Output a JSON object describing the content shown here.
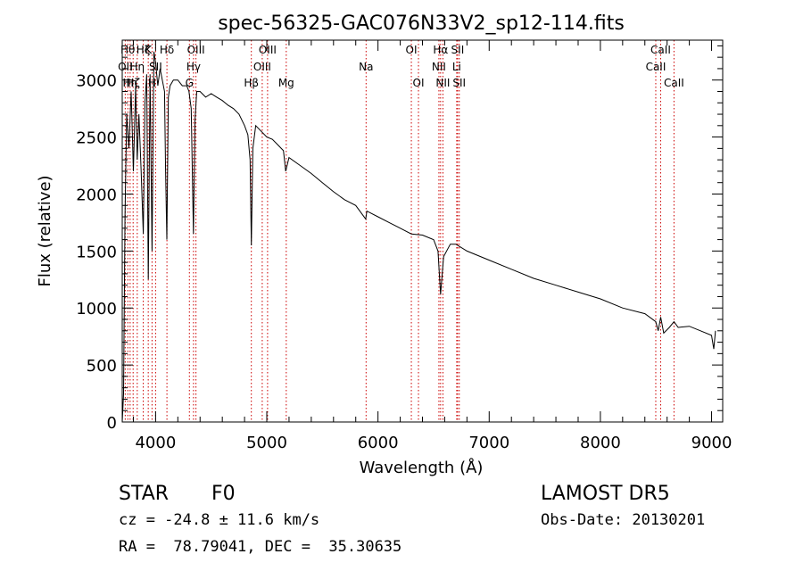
{
  "chart_data": {
    "type": "line",
    "title": "spec-56325-GAC076N33V2_sp12-114.fits",
    "xlabel": "Wavelength (Å)",
    "ylabel": "Flux (relative)",
    "xlim": [
      3700,
      9100
    ],
    "ylim": [
      0,
      3350
    ],
    "x_ticks": [
      4000,
      5000,
      6000,
      7000,
      8000,
      9000
    ],
    "y_ticks": [
      0,
      500,
      1000,
      1500,
      2000,
      2500,
      3000
    ],
    "grid": false,
    "line_color": "#000000",
    "marker_color": "#cc0000",
    "series": [
      {
        "x": [
          3700,
          3712,
          3725,
          3740,
          3760,
          3780,
          3800,
          3820,
          3835,
          3850,
          3870,
          3889,
          3905,
          3920,
          3934,
          3950,
          3968,
          3985,
          4000,
          4020,
          4040,
          4060,
          4080,
          4090,
          4101,
          4115,
          4130,
          4160,
          4200,
          4240,
          4280,
          4300,
          4320,
          4340,
          4355,
          4370,
          4400,
          4450,
          4500,
          4550,
          4600,
          4650,
          4700,
          4750,
          4800,
          4830,
          4850,
          4861,
          4875,
          4900,
          4950,
          5000,
          5050,
          5100,
          5150,
          5170,
          5200,
          5300,
          5400,
          5500,
          5600,
          5700,
          5800,
          5890,
          5900,
          6000,
          6100,
          6200,
          6300,
          6400,
          6500,
          6540,
          6563,
          6590,
          6650,
          6700,
          6800,
          7000,
          7200,
          7400,
          7600,
          7800,
          8000,
          8200,
          8400,
          8498,
          8520,
          8542,
          8570,
          8620,
          8662,
          8700,
          8800,
          8900,
          9000,
          9020,
          9035
        ],
        "y": [
          0,
          250,
          1800,
          2700,
          2400,
          2900,
          2200,
          2950,
          2300,
          2700,
          2200,
          1650,
          2800,
          3050,
          1250,
          3050,
          1500,
          3250,
          3150,
          2950,
          3100,
          3000,
          2900,
          2200,
          1600,
          2850,
          2950,
          3000,
          3000,
          2950,
          2950,
          2900,
          2750,
          1650,
          2650,
          2900,
          2900,
          2850,
          2880,
          2850,
          2820,
          2780,
          2750,
          2700,
          2600,
          2520,
          2300,
          1550,
          2400,
          2600,
          2550,
          2500,
          2480,
          2430,
          2380,
          2200,
          2320,
          2250,
          2180,
          2100,
          2020,
          1950,
          1900,
          1780,
          1850,
          1800,
          1750,
          1700,
          1650,
          1640,
          1600,
          1500,
          1120,
          1450,
          1560,
          1560,
          1500,
          1420,
          1340,
          1260,
          1200,
          1140,
          1080,
          1000,
          950,
          880,
          800,
          920,
          780,
          830,
          880,
          830,
          840,
          800,
          760,
          640,
          800
        ]
      }
    ],
    "line_markers": [
      {
        "x": 3727,
        "label": "OII",
        "row": 1
      },
      {
        "x": 3750,
        "label": "Hθ",
        "row": 0
      },
      {
        "x": 3771,
        "label": "Hη",
        "row": 2
      },
      {
        "x": 3798,
        "label": "Hζ",
        "row": 2
      },
      {
        "x": 3835,
        "label": "Hη",
        "row": 1
      },
      {
        "x": 3889,
        "label": "Hζ",
        "row": 0
      },
      {
        "x": 3934,
        "label": "K",
        "row": 0
      },
      {
        "x": 3968,
        "label": "H",
        "row": 2
      },
      {
        "x": 4000,
        "label": "SII",
        "row": 1
      },
      {
        "x": 4102,
        "label": "Hδ",
        "row": 0
      },
      {
        "x": 4304,
        "label": "G",
        "row": 2
      },
      {
        "x": 4341,
        "label": "Hγ",
        "row": 1
      },
      {
        "x": 4363,
        "label": "OIII",
        "row": 0
      },
      {
        "x": 4861,
        "label": "Hβ",
        "row": 2
      },
      {
        "x": 4959,
        "label": "OIII",
        "row": 1
      },
      {
        "x": 5007,
        "label": "OIII",
        "row": 0
      },
      {
        "x": 5175,
        "label": "Mg",
        "row": 2
      },
      {
        "x": 5893,
        "label": "Na",
        "row": 1
      },
      {
        "x": 6300,
        "label": "OI",
        "row": 0
      },
      {
        "x": 6364,
        "label": "OI",
        "row": 2
      },
      {
        "x": 6548,
        "label": "NII",
        "row": 1
      },
      {
        "x": 6563,
        "label": "Hα",
        "row": 0
      },
      {
        "x": 6584,
        "label": "NII",
        "row": 2
      },
      {
        "x": 6708,
        "label": "Li",
        "row": 1
      },
      {
        "x": 6716,
        "label": "SII",
        "row": 0
      },
      {
        "x": 6731,
        "label": "SII",
        "row": 2
      },
      {
        "x": 8498,
        "label": "CaII",
        "row": 1
      },
      {
        "x": 8542,
        "label": "CaII",
        "row": 0
      },
      {
        "x": 8662,
        "label": "CaII",
        "row": 2
      }
    ]
  },
  "info": {
    "class_label": "STAR",
    "subclass": "F0",
    "survey": "LAMOST DR5",
    "cz_text": "cz = -24.8 ± 11.6 km/s",
    "obs_date": "Obs-Date: 20130201",
    "radec": "RA =  78.79041, DEC =  35.30635"
  }
}
